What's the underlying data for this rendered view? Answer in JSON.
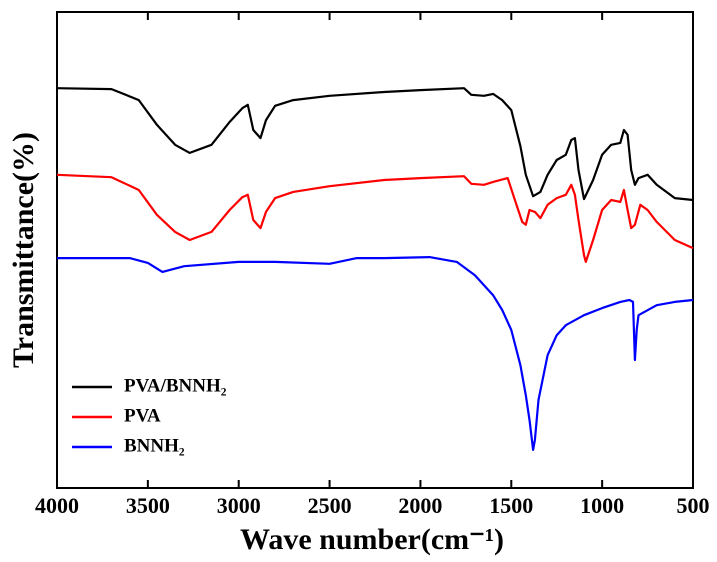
{
  "chart_data": {
    "type": "line",
    "xlabel": "Wave number(cm⁻¹)",
    "ylabel": "Transmittance(%)",
    "xlim": [
      4000,
      500
    ],
    "ylim": [
      0,
      100
    ],
    "xticks": [
      4000,
      3500,
      3000,
      2500,
      2000,
      1500,
      1000,
      500
    ],
    "legend": "lower left",
    "series": [
      {
        "name": "PVA/BNNH₂",
        "color": "#000000",
        "x": [
          4000,
          3700,
          3550,
          3450,
          3350,
          3270,
          3150,
          3050,
          2980,
          2950,
          2920,
          2880,
          2850,
          2800,
          2700,
          2500,
          2200,
          2000,
          1760,
          1720,
          1650,
          1600,
          1550,
          1500,
          1450,
          1420,
          1380,
          1340,
          1300,
          1250,
          1200,
          1170,
          1150,
          1130,
          1100,
          1050,
          1000,
          950,
          900,
          880,
          860,
          840,
          820,
          800,
          750,
          700,
          600,
          500
        ],
        "values": [
          84.0,
          83.8,
          81.5,
          76.3,
          72.1,
          70.4,
          72.1,
          76.9,
          79.8,
          80.5,
          75.2,
          73.5,
          77.3,
          80.3,
          81.5,
          82.4,
          83.2,
          83.6,
          84.0,
          82.6,
          82.4,
          82.8,
          81.5,
          79.4,
          71.8,
          65.8,
          61.3,
          62.2,
          65.8,
          68.9,
          70.0,
          73.1,
          73.5,
          66.8,
          60.7,
          64.7,
          70.0,
          72.1,
          72.5,
          75.2,
          74.2,
          66.8,
          63.7,
          65.1,
          65.8,
          63.7,
          60.9,
          60.5
        ]
      },
      {
        "name": "PVA",
        "color": "#ff0000",
        "x": [
          4000,
          3700,
          3550,
          3450,
          3350,
          3270,
          3150,
          3050,
          2980,
          2950,
          2920,
          2880,
          2850,
          2800,
          2700,
          2500,
          2200,
          2000,
          1760,
          1720,
          1650,
          1600,
          1520,
          1480,
          1440,
          1420,
          1400,
          1370,
          1340,
          1300,
          1250,
          1200,
          1170,
          1150,
          1130,
          1100,
          1090,
          1050,
          1000,
          950,
          900,
          880,
          860,
          840,
          820,
          790,
          750,
          700,
          600,
          500
        ],
        "values": [
          65.8,
          65.3,
          62.6,
          57.4,
          53.8,
          52.1,
          53.8,
          58.4,
          61.1,
          61.6,
          56.3,
          54.6,
          58.0,
          60.9,
          62.2,
          63.4,
          64.7,
          65.1,
          65.5,
          63.9,
          63.7,
          64.3,
          65.1,
          60.5,
          55.9,
          55.3,
          58.4,
          58.0,
          56.7,
          59.5,
          60.9,
          61.6,
          63.7,
          61.6,
          56.3,
          48.9,
          47.5,
          52.1,
          58.4,
          60.5,
          60.1,
          62.6,
          58.4,
          54.6,
          55.3,
          59.5,
          58.4,
          55.9,
          52.1,
          50.4
        ]
      },
      {
        "name": "BNNH₂",
        "color": "#0000ff",
        "x": [
          4000,
          3600,
          3500,
          3420,
          3300,
          3000,
          2800,
          2500,
          2350,
          2200,
          1950,
          1800,
          1700,
          1600,
          1550,
          1500,
          1450,
          1420,
          1400,
          1380,
          1370,
          1350,
          1300,
          1250,
          1200,
          1100,
          1000,
          900,
          850,
          830,
          820,
          810,
          800,
          700,
          600,
          500
        ],
        "values": [
          48.3,
          48.3,
          47.3,
          45.4,
          46.6,
          47.5,
          47.5,
          47.1,
          48.3,
          48.3,
          48.5,
          47.5,
          44.7,
          40.5,
          37.4,
          33.2,
          25.8,
          19.5,
          14.3,
          8.0,
          10.1,
          18.5,
          27.9,
          32.1,
          34.2,
          36.3,
          37.8,
          39.1,
          39.5,
          39.1,
          26.9,
          33.2,
          36.3,
          38.4,
          39.1,
          39.5
        ]
      }
    ]
  }
}
